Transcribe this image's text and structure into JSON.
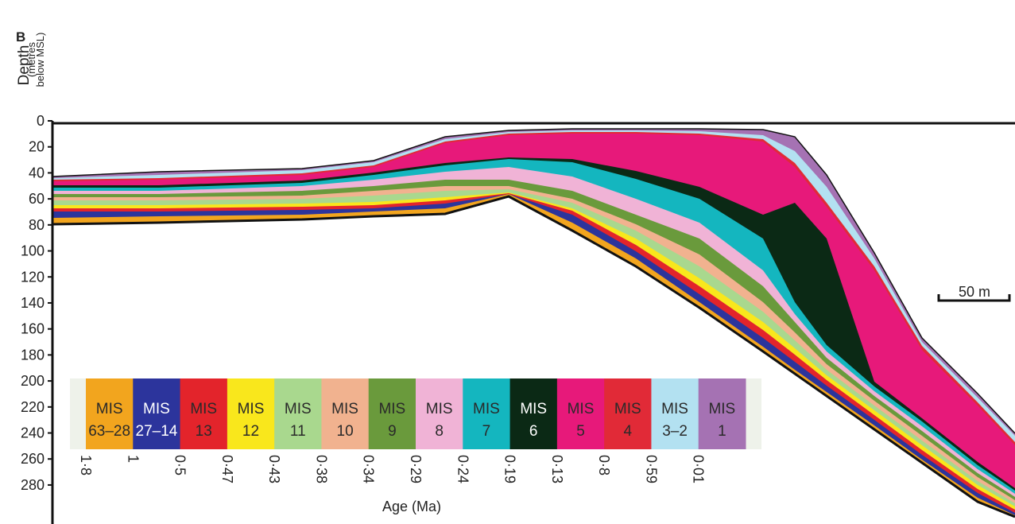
{
  "chart_data": {
    "type": "cross-section",
    "panel_label": "B",
    "y_label": "Depth",
    "y_sublabel": [
      "(metres",
      "below MSL)"
    ],
    "ylim": [
      0,
      310
    ],
    "yticks": [
      0,
      20,
      40,
      60,
      80,
      100,
      120,
      140,
      160,
      180,
      200,
      220,
      240,
      260,
      280
    ],
    "x_label": "Age (Ma)",
    "scale_bar": "50 m",
    "stages": [
      {
        "label": "MIS",
        "number": "63–28",
        "color": "#f2a51e",
        "text_color": "#2a2a2a",
        "age": "1·8"
      },
      {
        "label": "MIS",
        "number": "27–14",
        "color": "#2c349c",
        "text_color": "#ffffff",
        "age": "1"
      },
      {
        "label": "MIS",
        "number": "13",
        "color": "#e3242b",
        "text_color": "#2a2a2a",
        "age": "0·5"
      },
      {
        "label": "MIS",
        "number": "12",
        "color": "#f9e71c",
        "text_color": "#2a2a2a",
        "age": "0·47"
      },
      {
        "label": "MIS",
        "number": "11",
        "color": "#a9d88e",
        "text_color": "#2a2a2a",
        "age": "0·43"
      },
      {
        "label": "MIS",
        "number": "10",
        "color": "#f1b28f",
        "text_color": "#2a2a2a",
        "age": "0·38"
      },
      {
        "label": "MIS",
        "number": "9",
        "color": "#6a9a3c",
        "text_color": "#2a2a2a",
        "age": "0·34"
      },
      {
        "label": "MIS",
        "number": "8",
        "color": "#f0b3d6",
        "text_color": "#2a2a2a",
        "age": "0·29"
      },
      {
        "label": "MIS",
        "number": "7",
        "color": "#14b6bf",
        "text_color": "#2a2a2a",
        "age": "0·24"
      },
      {
        "label": "MIS",
        "number": "6",
        "color": "#0b2915",
        "text_color": "#ffffff",
        "age": "0·19"
      },
      {
        "label": "MIS",
        "number": "5",
        "color": "#e7197a",
        "text_color": "#2a2a2a",
        "age": "0·13"
      },
      {
        "label": "MIS",
        "number": "4",
        "color": "#e12a37",
        "text_color": "#2a2a2a",
        "age": "0·8"
      },
      {
        "label": "MIS",
        "number": "3–2",
        "color": "#b3e1f1",
        "text_color": "#2a2a2a",
        "age": "0·59"
      },
      {
        "label": "MIS",
        "number": "1",
        "color": "#a572b3",
        "text_color": "#2a2a2a",
        "age": "0·01"
      }
    ]
  }
}
